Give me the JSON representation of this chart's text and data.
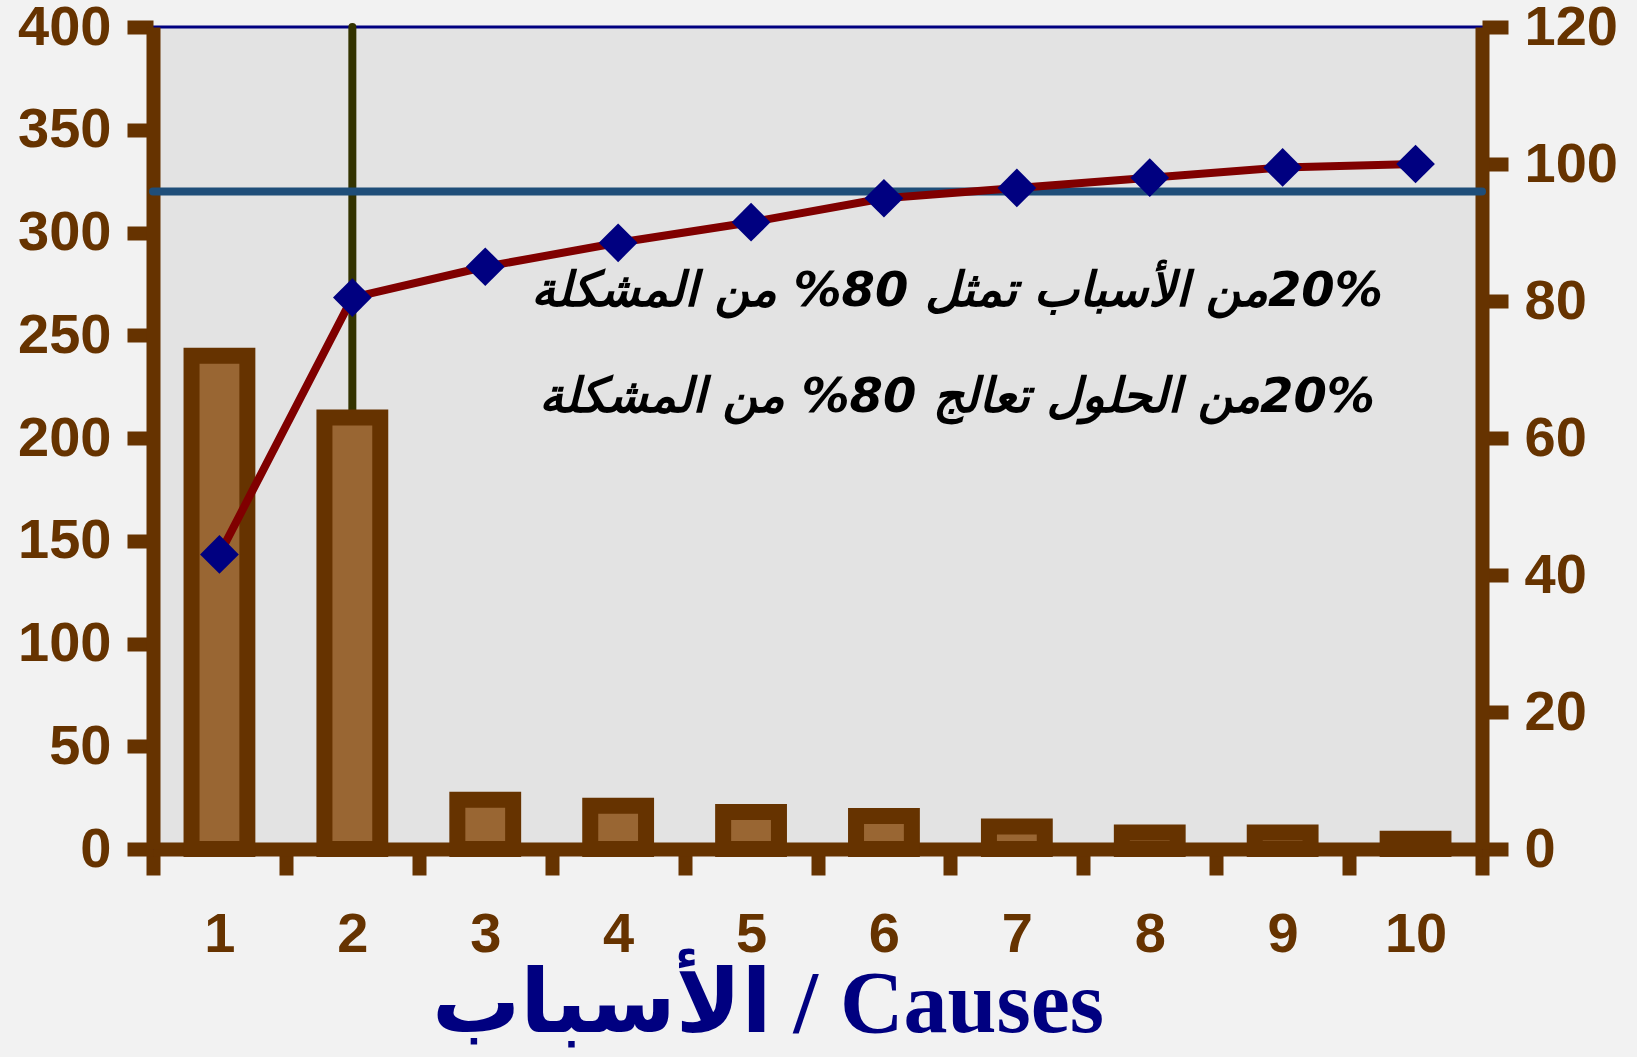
{
  "chart_data": {
    "type": "bar",
    "xlabel": "الأسباب / Causes",
    "annotations": [
      "20%من الأسباب تمثل 80% من المشكلة",
      "20%من الحلول تعالج 80% من المشكلة"
    ],
    "categories": [
      "1",
      "2",
      "3",
      "4",
      "5",
      "6",
      "7",
      "8",
      "9",
      "10"
    ],
    "series": [
      {
        "color": "#996633",
        "values": [
          240,
          210,
          24,
          21,
          18,
          16,
          11,
          8,
          8,
          5
        ]
      },
      {
        "type": "line",
        "axis": "y2",
        "color": "#800000",
        "colors": [
          "#000080",
          "#000080",
          "#000080",
          "#000080",
          "#000080",
          "#000080",
          "#000080",
          "#000080",
          "#000080",
          "#000080"
        ],
        "values": [
          43,
          80.5,
          85,
          88.5,
          91.5,
          95,
          96.5,
          98,
          99.5,
          100
        ]
      }
    ],
    "ylim": [
      0,
      400
    ],
    "yticks": [
      0,
      50,
      100,
      150,
      200,
      250,
      300,
      350,
      400
    ],
    "y2lim": [
      0,
      120
    ],
    "y2ticks": [
      0,
      20,
      40,
      60,
      80,
      100,
      120
    ],
    "ref_lines": [
      {
        "axis": "x",
        "value": "2",
        "color": "#333300"
      },
      {
        "axis": "y2",
        "value": 96,
        "color": "#1f4e79"
      }
    ],
    "marker": "diamond",
    "line_style": "solid"
  }
}
